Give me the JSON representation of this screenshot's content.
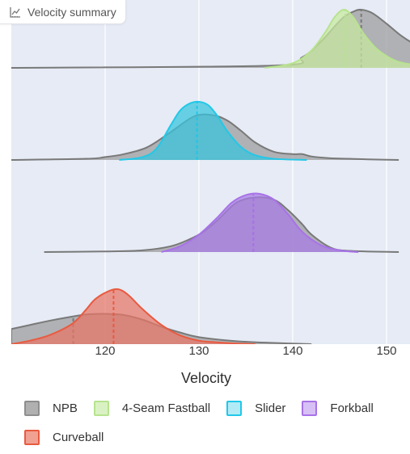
{
  "header": {
    "title": "Velocity summary",
    "icon": "chart-icon"
  },
  "chart_data": {
    "type": "area",
    "xlabel": "Velocity",
    "xlim": [
      110,
      153
    ],
    "xticks": [
      120,
      130,
      140,
      150
    ],
    "legend_position": "bottom",
    "grid": true,
    "rows": [
      {
        "name": "4-Seam Fastball",
        "baseline": {
          "name": "NPB",
          "x": [
            110,
            138,
            141,
            143,
            144.5,
            145.5,
            146.5,
            147.3,
            148.5,
            150,
            151.5,
            153
          ],
          "y": [
            0,
            0.04,
            0.18,
            0.45,
            0.72,
            0.88,
            0.97,
            1.0,
            0.94,
            0.76,
            0.56,
            0.4
          ],
          "mean": 147.3
        },
        "pitch": {
          "x": [
            137,
            140,
            142,
            143.5,
            144.5,
            145.5,
            146.5,
            147.5,
            149,
            151,
            153
          ],
          "y": [
            0,
            0.08,
            0.3,
            0.62,
            0.88,
            1.0,
            0.86,
            0.6,
            0.32,
            0.12,
            0.05
          ],
          "mean": 145.6
        }
      },
      {
        "name": "Slider",
        "baseline": {
          "name": "NPB",
          "x": [
            110,
            118,
            120,
            122,
            124.5,
            127,
            129.5,
            131.5,
            133,
            134.5,
            136,
            138,
            140,
            141,
            142,
            144,
            146,
            148,
            151.3
          ],
          "y": [
            0,
            0.02,
            0.05,
            0.1,
            0.22,
            0.48,
            0.75,
            0.77,
            0.68,
            0.5,
            0.3,
            0.14,
            0.1,
            0.1,
            0.06,
            0.03,
            0.02,
            0.01,
            0
          ],
          "mean": 129.8
        },
        "pitch": {
          "x": [
            121.5,
            124,
            125.5,
            127,
            128,
            129,
            130,
            131,
            132,
            133,
            134.5,
            136,
            138,
            141.5
          ],
          "y": [
            0,
            0.05,
            0.2,
            0.6,
            0.85,
            0.97,
            1.0,
            0.94,
            0.75,
            0.5,
            0.22,
            0.08,
            0.02,
            0
          ],
          "mean": 129.8
        }
      },
      {
        "name": "Forkball",
        "baseline": {
          "name": "NPB",
          "x": [
            113.5,
            120,
            124,
            127,
            129,
            130.5,
            132,
            134,
            136,
            138,
            139.5,
            141,
            142,
            144,
            146,
            151.3
          ],
          "y": [
            0,
            0.01,
            0.03,
            0.1,
            0.22,
            0.35,
            0.55,
            0.85,
            0.94,
            0.9,
            0.72,
            0.48,
            0.3,
            0.08,
            0.02,
            0
          ],
          "mean": 135.8
        },
        "pitch": {
          "x": [
            126,
            128,
            130,
            132,
            133.5,
            135,
            136.5,
            138,
            139.5,
            141,
            143,
            145,
            147
          ],
          "y": [
            0,
            0.1,
            0.3,
            0.6,
            0.85,
            0.98,
            1.0,
            0.9,
            0.65,
            0.35,
            0.12,
            0.03,
            0
          ],
          "mean": 135.8
        }
      },
      {
        "name": "Curveball",
        "baseline": {
          "name": "NPB",
          "x": [
            110,
            112,
            114,
            116,
            118,
            120,
            122,
            124,
            126,
            128,
            130,
            134,
            138,
            142
          ],
          "y": [
            0.26,
            0.33,
            0.4,
            0.46,
            0.51,
            0.52,
            0.5,
            0.42,
            0.3,
            0.2,
            0.12,
            0.05,
            0.02,
            0
          ],
          "mean": 116.6
        },
        "pitch": {
          "x": [
            110,
            112,
            114,
            116,
            117,
            118,
            119,
            120.5,
            121.5,
            122.5,
            124,
            126,
            128,
            130,
            132,
            134,
            136
          ],
          "y": [
            0.0,
            0.06,
            0.15,
            0.3,
            0.42,
            0.6,
            0.78,
            0.92,
            0.94,
            0.84,
            0.6,
            0.33,
            0.15,
            0.06,
            0.03,
            0.01,
            0
          ],
          "mean": 120.9
        }
      }
    ],
    "colors": {
      "NPB": {
        "stroke": "#797979",
        "fill": "#999999"
      },
      "4-Seam Fastball": {
        "stroke": "#b7e38e",
        "fill": "#c8ea9f"
      },
      "Slider": {
        "stroke": "#22c8e8",
        "fill": "#36c3dc"
      },
      "Forkball": {
        "stroke": "#a872e8",
        "fill": "#a87ae6"
      },
      "Curveball": {
        "stroke": "#e85a40",
        "fill": "#e87565"
      }
    }
  },
  "legend": {
    "items": [
      {
        "label": "NPB",
        "color": "#8e8e8e",
        "fill": "#b0b0b0"
      },
      {
        "label": "4-Seam Fastball",
        "color": "#b7e38e",
        "fill": "#daf2c3"
      },
      {
        "label": "Slider",
        "color": "#22c8e8",
        "fill": "#b2ebf6"
      },
      {
        "label": "Forkball",
        "color": "#a872e8",
        "fill": "#d7c0f5"
      },
      {
        "label": "Curveball",
        "color": "#e85a40",
        "fill": "#f1a192"
      }
    ]
  }
}
